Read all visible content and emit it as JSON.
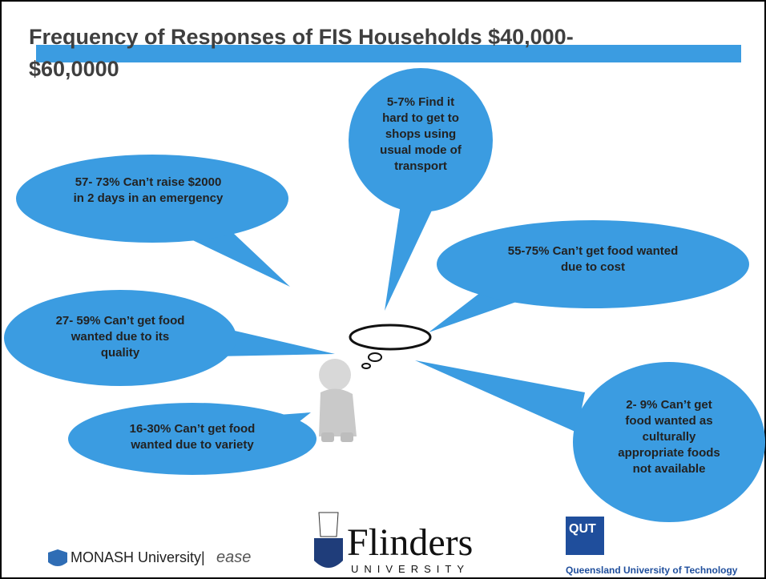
{
  "header": {
    "title_lines": [
      "Frequency of Responses  of FIS Households $40,000-",
      "$60,0000"
    ]
  },
  "bubbles": [
    {
      "lines": [
        "5-7% Find it",
        "hard to get to",
        "shops using",
        "usual mode of",
        "transport"
      ]
    },
    {
      "lines": [
        "57- 73%  Can’t raise $2000",
        "in  2 days in an emergency"
      ]
    },
    {
      "lines": [
        "55-75% Can’t get food wanted",
        "due to  cost"
      ]
    },
    {
      "lines": [
        "27- 59% Can’t get food",
        "wanted due to its",
        "quality"
      ]
    },
    {
      "lines": [
        "16-30% Can’t get food",
        "wanted due to variety"
      ]
    },
    {
      "lines": [
        "2- 9% Can’t get",
        "food wanted  as",
        "culturally",
        "appropriate foods",
        "not available"
      ]
    }
  ],
  "logos": {
    "monash": "MONASH University|",
    "ease": "ease",
    "flinders": "Flinders",
    "flinders_sub": "UNIVERSITY",
    "qut": "QUT",
    "qut_name": "Queensland University of Technology"
  }
}
